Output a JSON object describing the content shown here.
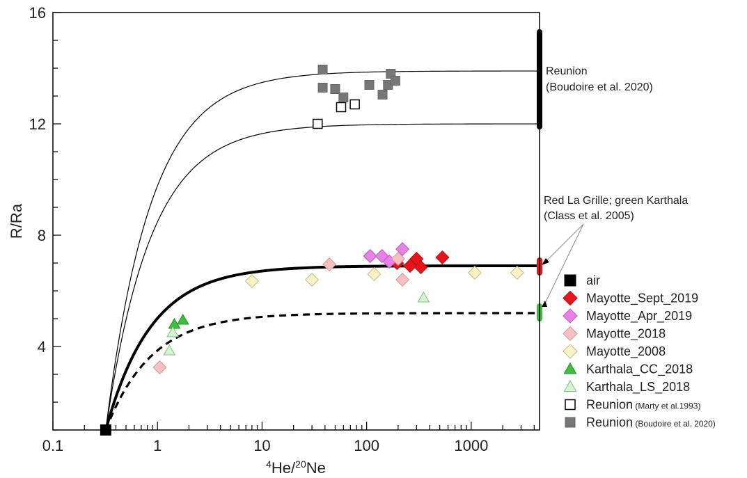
{
  "chart_data": {
    "type": "scatter",
    "x_scale": "log",
    "xlim": [
      0.1,
      4500
    ],
    "ylim": [
      1,
      16
    ],
    "x_ticks": [
      0.1,
      1,
      10,
      100,
      1000
    ],
    "x_tick_labels": [
      "0.1",
      "1",
      "10",
      "100",
      "1000"
    ],
    "y_ticks": [
      4,
      8,
      12,
      16
    ],
    "y_tick_labels": [
      "4",
      "8",
      "12",
      "16"
    ],
    "ylabel": "R/Ra",
    "xlabel": {
      "sup1": "4",
      "base1": "He/",
      "sup2": "20",
      "base2": "Ne"
    },
    "grid": false,
    "legend_position": "right",
    "annotations": {
      "reunion": [
        "Reunion",
        "(Boudoire et al. 2020)"
      ],
      "mixing": [
        "Red La Grille; green Karthala",
        "(Class et al. 2005)"
      ]
    },
    "air_point": {
      "x": 0.32,
      "y": 1.0
    },
    "mixing_curves": [
      {
        "end_member_y": 13.9,
        "style": "thin"
      },
      {
        "end_member_y": 12.0,
        "style": "thin"
      },
      {
        "end_member_y": 6.9,
        "style": "thick"
      },
      {
        "end_member_y": 5.2,
        "style": "dashed"
      }
    ],
    "endmember_bars": [
      {
        "y_min": 11.9,
        "y_max": 15.3,
        "color": "#000000"
      },
      {
        "y_min": 6.65,
        "y_max": 7.1,
        "color": "#e8141b"
      },
      {
        "y_min": 5.0,
        "y_max": 5.45,
        "color": "#3cbf3c"
      }
    ],
    "series": [
      {
        "name": "air",
        "marker": "square",
        "color": "#000000",
        "stroke": "#000000",
        "points": [
          [
            0.32,
            1.0
          ]
        ]
      },
      {
        "name": "Mayotte_Sept_2019",
        "marker": "diamond",
        "color": "#e8141b",
        "stroke": "#b80f14",
        "points": [
          [
            260,
            6.9
          ],
          [
            300,
            7.15
          ],
          [
            330,
            6.85
          ],
          [
            530,
            7.2
          ],
          [
            195,
            7.0
          ]
        ]
      },
      {
        "name": "Mayotte_Apr_2019",
        "marker": "diamond",
        "color": "#e882e8",
        "stroke": "#b860b8",
        "points": [
          [
            108,
            7.25
          ],
          [
            140,
            7.25
          ],
          [
            165,
            7.05
          ],
          [
            220,
            7.5
          ]
        ]
      },
      {
        "name": "Mayotte_2018",
        "marker": "diamond",
        "color": "#f4c0c0",
        "stroke": "#d89a9a",
        "points": [
          [
            1.05,
            3.25
          ],
          [
            44,
            6.95
          ],
          [
            200,
            7.15
          ],
          [
            220,
            6.4
          ]
        ]
      },
      {
        "name": "Mayotte_2008",
        "marker": "diamond",
        "color": "#fbf3c8",
        "stroke": "#c8bb88",
        "points": [
          [
            8,
            6.35
          ],
          [
            30,
            6.4
          ],
          [
            118,
            6.6
          ],
          [
            1080,
            6.65
          ],
          [
            2750,
            6.65
          ]
        ]
      },
      {
        "name": "Karthala_CC_2018",
        "marker": "triangle",
        "color": "#3cbf3c",
        "stroke": "#2a8f2a",
        "points": [
          [
            1.45,
            4.8
          ],
          [
            1.75,
            4.95
          ]
        ]
      },
      {
        "name": "Karthala_LS_2018",
        "marker": "triangle",
        "color": "#d4f4d4",
        "stroke": "#82c082",
        "points": [
          [
            1.3,
            3.85
          ],
          [
            1.4,
            4.5
          ],
          [
            350,
            5.75
          ]
        ]
      },
      {
        "name": "Reunion",
        "name_suffix": "(Marty et al.1993)",
        "marker": "square_open",
        "color": "#ffffff",
        "stroke": "#000000",
        "points": [
          [
            34,
            12.0
          ],
          [
            57,
            12.6
          ],
          [
            77,
            12.7
          ]
        ]
      },
      {
        "name": "Reunion",
        "name_suffix": "(Boudoire et al. 2020)",
        "marker": "square",
        "color": "#777777",
        "stroke": "#666666",
        "points": [
          [
            38,
            13.95
          ],
          [
            38,
            13.3
          ],
          [
            50,
            13.25
          ],
          [
            60,
            12.95
          ],
          [
            106,
            13.4
          ],
          [
            142,
            13.05
          ],
          [
            160,
            13.4
          ],
          [
            170,
            13.8
          ],
          [
            188,
            13.55
          ]
        ]
      }
    ]
  }
}
